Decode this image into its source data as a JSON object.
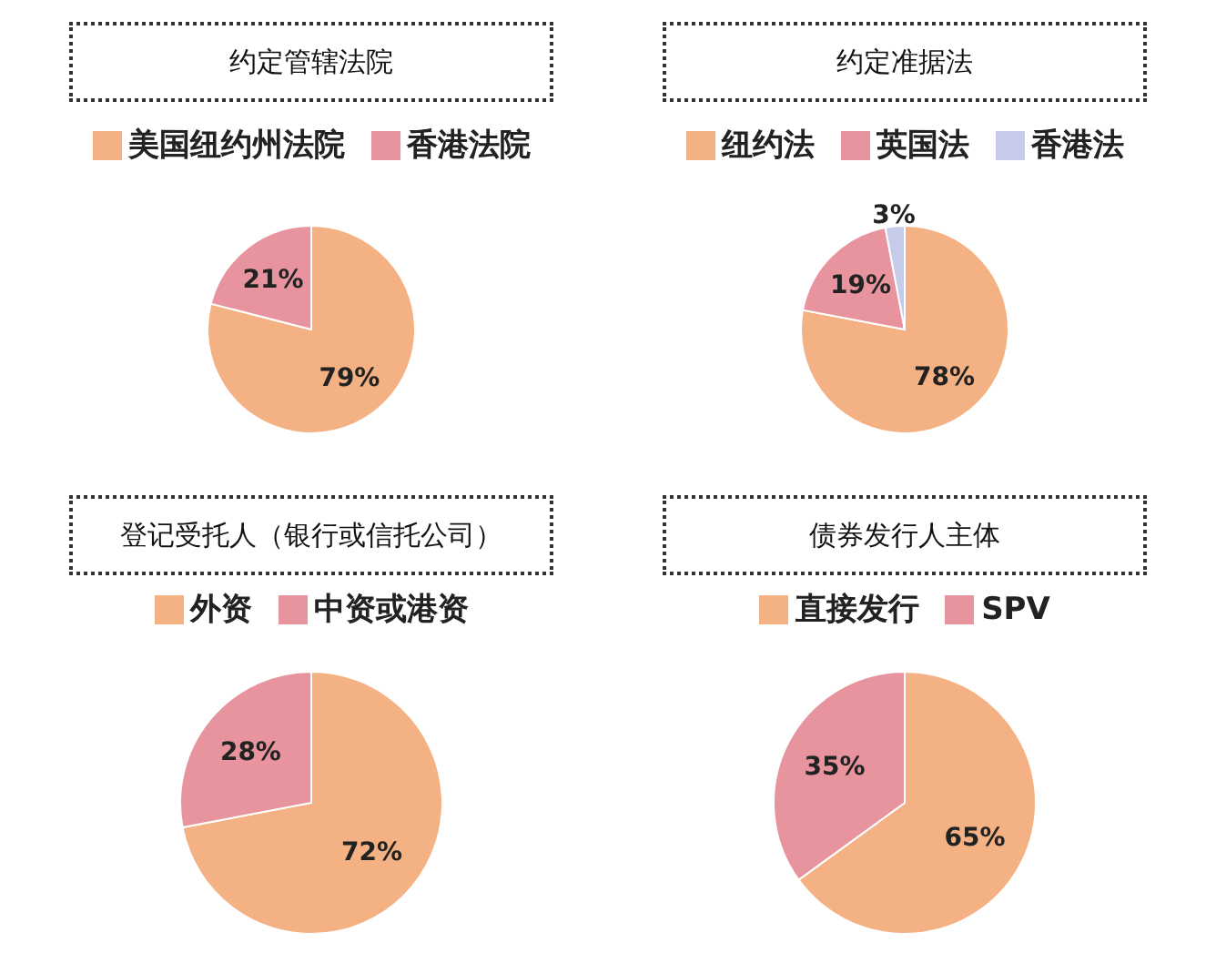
{
  "chart_data": [
    {
      "type": "pie",
      "title": "约定管辖法院",
      "categories": [
        "美国纽约州法院",
        "香港法院"
      ],
      "values": [
        79,
        21
      ],
      "value_labels": [
        "79%",
        "21%"
      ],
      "colors": [
        "#f4b183",
        "#e8949f"
      ],
      "legend": "top"
    },
    {
      "type": "pie",
      "title": "约定准据法",
      "categories": [
        "纽约法",
        "英国法",
        "香港法"
      ],
      "values": [
        78,
        19,
        3
      ],
      "value_labels": [
        "78%",
        "19%",
        "3%"
      ],
      "colors": [
        "#f4b183",
        "#e8949f",
        "#c5cbe8"
      ],
      "legend": "top"
    },
    {
      "type": "pie",
      "title": "登记受托人（银行或信托公司）",
      "categories": [
        "外资",
        "中资或港资"
      ],
      "values": [
        72,
        28
      ],
      "value_labels": [
        "72%",
        "28%"
      ],
      "colors": [
        "#f4b183",
        "#e8949f"
      ],
      "legend": "top"
    },
    {
      "type": "pie",
      "title": "债券发行人主体",
      "categories": [
        "直接发行",
        "SPV"
      ],
      "values": [
        65,
        35
      ],
      "value_labels": [
        "65%",
        "35%"
      ],
      "colors": [
        "#f4b183",
        "#e8949f"
      ],
      "legend": "top"
    }
  ]
}
